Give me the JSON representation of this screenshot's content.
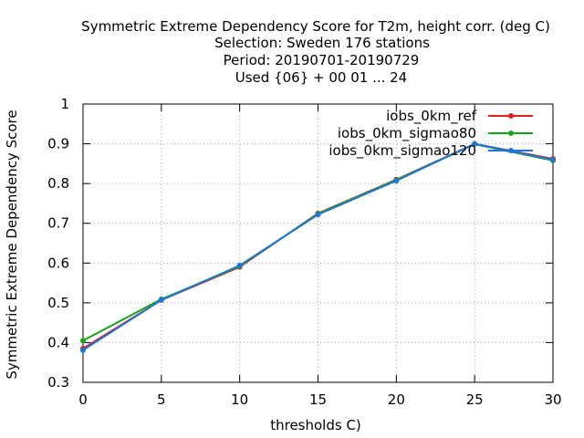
{
  "chart_data": {
    "type": "line",
    "title_lines": [
      "Symmetric Extreme Dependency Score  for T2m, height corr. (deg C)",
      "Selection: Sweden    176 stations",
      "Period: 20190701-20190729",
      "Used {06} + 00 01 ... 24"
    ],
    "xlabel": "thresholds C)",
    "ylabel": "Symmetric Extreme Dependency Score",
    "xlim": [
      0,
      30
    ],
    "ylim": [
      0.3,
      1.0
    ],
    "x_ticks": [
      "0",
      "5",
      "10",
      "15",
      "20",
      "25",
      "30"
    ],
    "y_ticks": [
      "0.3",
      "0.4",
      "0.5",
      "0.6",
      "0.7",
      "0.8",
      "0.9",
      "1"
    ],
    "grid": true,
    "legend_position": "top-right",
    "x": [
      0,
      5,
      10,
      15,
      20,
      25,
      30
    ],
    "series": [
      {
        "name": "iobs_0km_ref",
        "color": "#e41a1c",
        "values": [
          0.385,
          0.507,
          0.59,
          0.725,
          0.81,
          0.9,
          0.862
        ]
      },
      {
        "name": "iobs_0km_sigmao80",
        "color": "#1aa31a",
        "values": [
          0.405,
          0.509,
          0.592,
          0.724,
          0.809,
          0.899,
          0.858
        ]
      },
      {
        "name": "iobs_0km_sigmao120",
        "color": "#1f77d4",
        "values": [
          0.381,
          0.507,
          0.594,
          0.722,
          0.807,
          0.9,
          0.86
        ]
      }
    ]
  }
}
